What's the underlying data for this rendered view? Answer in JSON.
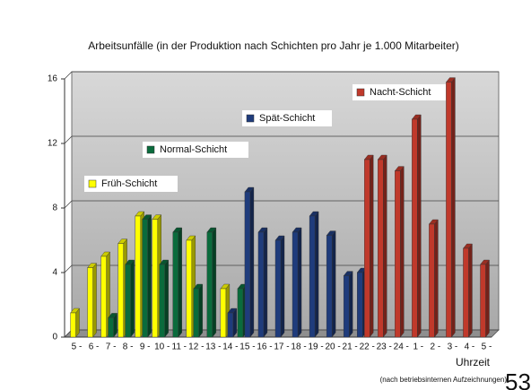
{
  "chart_data": {
    "type": "bar3d",
    "title": "Arbeitsunfälle (in der Produktion nach Schichten pro Jahr je 1.000 Mitarbeiter)",
    "x_label": "Uhrzeit",
    "source": "(nach betriebsinternen Aufzeichnungen)",
    "page_number": "53",
    "categories": [
      "5 -",
      "6 -",
      "7 -",
      "8 -",
      "9 -",
      "10 -",
      "11 -",
      "12 -",
      "13 -",
      "14 -",
      "15 -",
      "16 -",
      "17 -",
      "18 -",
      "19 -",
      "20 -",
      "21 -",
      "22 -",
      "23 -",
      "24 -",
      "1 -",
      "2 -",
      "3 -",
      "4 -",
      "5 -"
    ],
    "series": [
      {
        "name": "Früh-Schicht",
        "color": "#ffff00",
        "values": [
          1.5,
          4.3,
          5.0,
          5.8,
          7.5,
          7.3,
          null,
          6.0,
          null,
          3.0,
          null,
          null,
          null,
          null,
          null,
          null,
          null,
          null,
          null,
          null,
          null,
          null,
          null,
          null,
          null
        ]
      },
      {
        "name": "Normal-Schicht",
        "color": "#0a6b3c",
        "values": [
          null,
          null,
          1.2,
          4.5,
          7.3,
          4.5,
          6.5,
          3.0,
          6.5,
          null,
          3.0,
          null,
          null,
          null,
          null,
          null,
          null,
          null,
          null,
          null,
          null,
          null,
          null,
          null,
          null
        ]
      },
      {
        "name": "Spät-Schicht",
        "color": "#1f3c7c",
        "values": [
          null,
          null,
          null,
          null,
          null,
          null,
          null,
          null,
          null,
          1.5,
          9.0,
          6.5,
          6.0,
          6.5,
          7.5,
          6.3,
          3.8,
          4.0,
          null,
          null,
          null,
          null,
          null,
          null,
          null
        ]
      },
      {
        "name": "Nacht-Schicht",
        "color": "#c0392b",
        "values": [
          null,
          null,
          null,
          null,
          null,
          null,
          null,
          null,
          null,
          null,
          null,
          null,
          null,
          null,
          null,
          null,
          null,
          11.0,
          11.0,
          10.3,
          13.5,
          7.0,
          15.8,
          5.5,
          4.5
        ]
      }
    ],
    "ylim": [
      0,
      16
    ],
    "yticks": [
      0,
      4,
      8,
      12,
      16
    ],
    "grid": true
  }
}
